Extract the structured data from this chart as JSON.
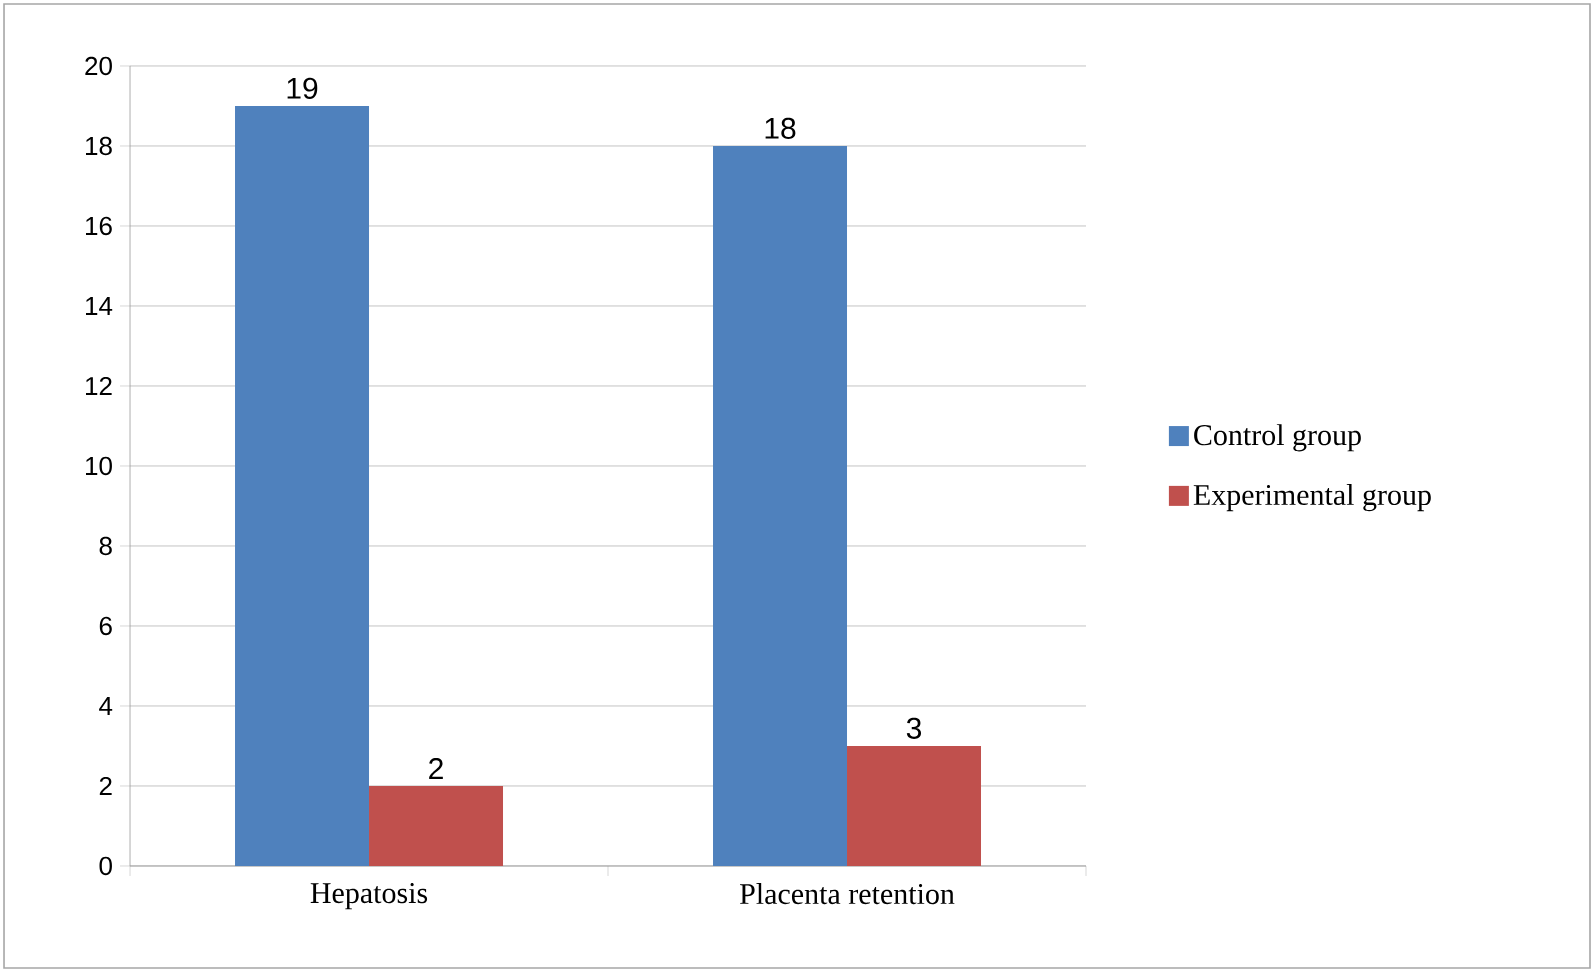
{
  "chart_data": {
    "type": "bar",
    "categories": [
      "Hepatosis",
      "Placenta retention"
    ],
    "series": [
      {
        "name": "Control group",
        "color": "#4f81bd",
        "values": [
          19,
          18
        ]
      },
      {
        "name": "Experimental group",
        "color": "#c0504d",
        "values": [
          2,
          3
        ]
      }
    ],
    "ylim": [
      0,
      20
    ],
    "yticks": [
      0,
      2,
      4,
      6,
      8,
      10,
      12,
      14,
      16,
      18,
      20
    ],
    "grid": "y",
    "legend": "right",
    "data_labels": true
  }
}
